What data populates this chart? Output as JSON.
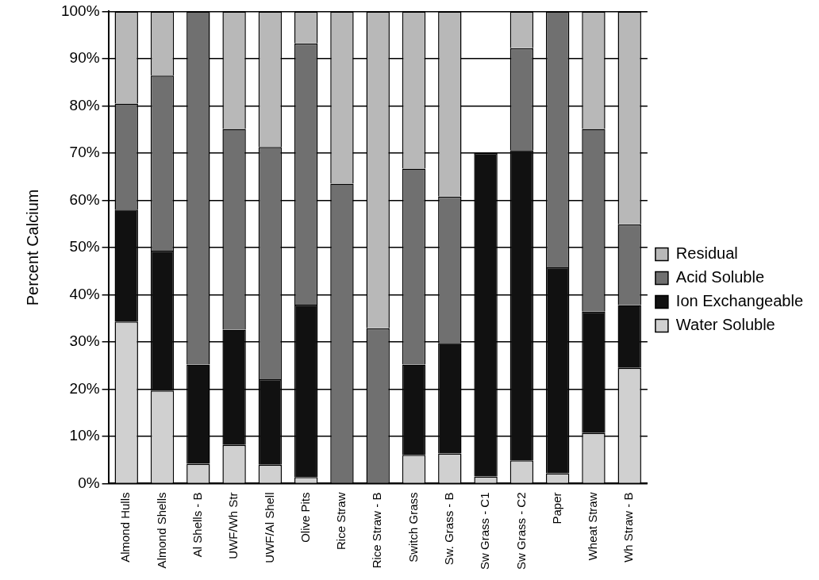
{
  "chart_data": {
    "type": "bar",
    "stacked": true,
    "ylabel": "Percent Calcium",
    "categories": [
      "Almond Hulls",
      "Almond Shells",
      "Al Shells - B",
      "UWF/Wh Str",
      "UWF/Al Shell",
      "Olive Pits",
      "Rice Straw",
      "Rice Straw - B",
      "Switch Grass",
      "Sw. Grass - B",
      "Sw Grass - C1",
      "Sw Grass - C2",
      "Paper",
      "Wheat Straw",
      "Wh Straw - B"
    ],
    "series": [
      {
        "name": "Water Soluble",
        "color": "#d0d0d0",
        "values": [
          34.3,
          19.7,
          4.2,
          8.2,
          4,
          1.4,
          0,
          0,
          6.1,
          6.4,
          1.5,
          4.9,
          2.2,
          10.7,
          24.5
        ]
      },
      {
        "name": "Ion Exchangeable",
        "color": "#111111",
        "values": [
          23.7,
          29.6,
          21,
          24.4,
          18.1,
          36.5,
          null,
          null,
          19.1,
          23.4,
          68.5,
          65.7,
          43.6,
          25.7,
          13.3
        ]
      },
      {
        "name": "Acid Soluble",
        "color": "#707070",
        "values": [
          22.5,
          37.1,
          74.8,
          42.5,
          49.2,
          55.3,
          63.5,
          32.9,
          41.5,
          31,
          null,
          21.6,
          54.2,
          38.7,
          17.1
        ]
      },
      {
        "name": "Residual",
        "color": "#b8b8b8",
        "values": [
          19.5,
          13.6,
          0,
          24.9,
          28.7,
          6.8,
          36.5,
          67.1,
          33.3,
          39.2,
          null,
          7.8,
          0,
          24.9,
          45.1
        ]
      }
    ],
    "ylim": [
      0,
      100
    ],
    "yticks": [
      {
        "value": 0,
        "label": "0%"
      },
      {
        "value": 10,
        "label": "10%"
      },
      {
        "value": 20,
        "label": "20%"
      },
      {
        "value": 30,
        "label": "30%"
      },
      {
        "value": 40,
        "label": "40%"
      },
      {
        "value": 50,
        "label": "50%"
      },
      {
        "value": 60,
        "label": "60%"
      },
      {
        "value": 70,
        "label": "70%"
      },
      {
        "value": 80,
        "label": "80%"
      },
      {
        "value": 90,
        "label": "90%"
      },
      {
        "value": 100,
        "label": "100%"
      }
    ],
    "grid": "y",
    "legend": "right"
  }
}
